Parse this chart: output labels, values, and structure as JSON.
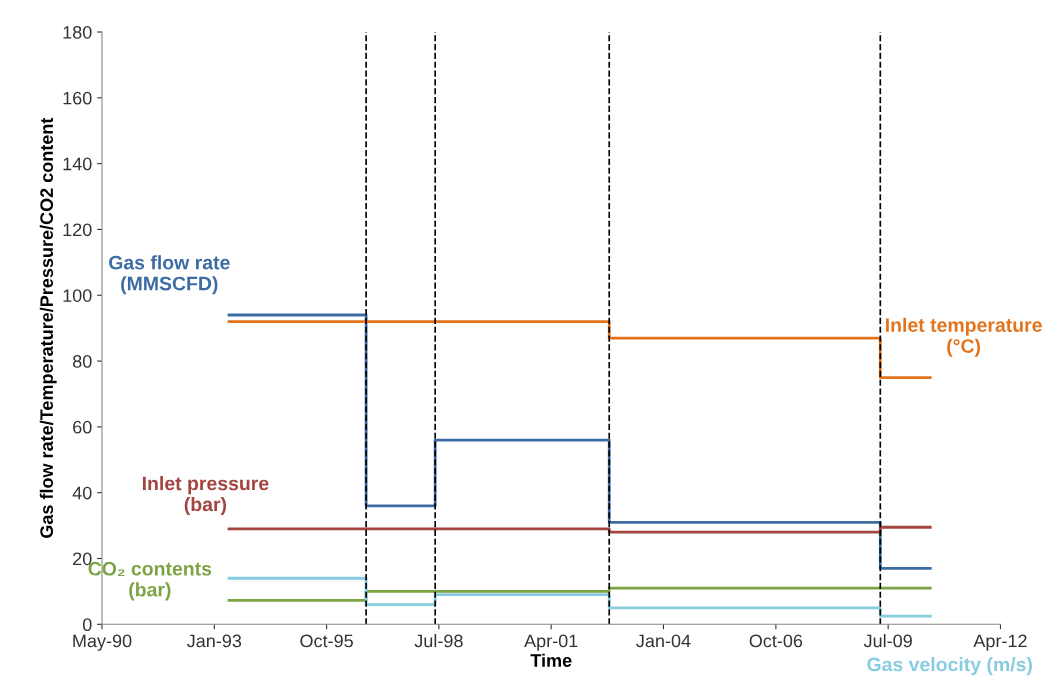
{
  "chart_data": {
    "type": "step",
    "xlabel": "Time",
    "ylabel": "Gas flow rate/Temperature/Pressure/CO2 content",
    "xlim": [
      "1990-05-07",
      "2012-04-02"
    ],
    "xticks": [
      {
        "value": "1990-05-07",
        "label": "May-90"
      },
      {
        "value": "1993-01-31",
        "label": "Jan-93"
      },
      {
        "value": "1995-10-28",
        "label": "Oct-95"
      },
      {
        "value": "1998-07-24",
        "label": "Jul-98"
      },
      {
        "value": "2001-04-19",
        "label": "Apr-01"
      },
      {
        "value": "2004-01-14",
        "label": "Jan-04"
      },
      {
        "value": "2006-10-11",
        "label": "Oct-06"
      },
      {
        "value": "2009-07-07",
        "label": "Jul-09"
      },
      {
        "value": "2012-04-02",
        "label": "Apr-12"
      }
    ],
    "ylim": [
      0,
      180
    ],
    "yticks": [
      0,
      20,
      40,
      60,
      80,
      100,
      120,
      140,
      160,
      180
    ],
    "x": [
      "1993-06-11",
      "1996-10-14",
      "1998-06-21",
      "2002-09-18",
      "2009-04-28",
      "2010-07-17"
    ],
    "series": [
      {
        "name": "Gas flow rate\n(MMSCFD)",
        "color": "#3c6ca4",
        "values": [
          94,
          36,
          56,
          31,
          17,
          17
        ]
      },
      {
        "name": "Inlet temperature\n(°C)",
        "color": "#e4741c",
        "values": [
          92,
          92,
          92,
          87,
          75,
          75
        ]
      },
      {
        "name": "Inlet pressure\n(bar)",
        "color": "#a44440",
        "values": [
          29,
          29,
          29,
          28,
          29.5,
          29.5
        ]
      },
      {
        "name": "CO₂ contents\n(bar)",
        "color": "#7ca444",
        "values": [
          7.3,
          10,
          10,
          11,
          11,
          11
        ]
      },
      {
        "name": "Gas velocity (m/s)",
        "color": "#88cce0",
        "values": [
          14,
          6,
          9,
          5,
          2.5,
          2.5
        ]
      }
    ],
    "ref_lines": [
      {
        "axis": "x",
        "value": "1996-10-14",
        "color": "#000000",
        "line_style": "dashed"
      },
      {
        "axis": "x",
        "value": "1998-06-21",
        "color": "#000000",
        "line_style": "dashed"
      },
      {
        "axis": "x",
        "value": "2002-09-18",
        "color": "#000000",
        "line_style": "dashed"
      },
      {
        "axis": "x",
        "value": "2009-04-28",
        "color": "#000000",
        "line_style": "dashed"
      }
    ],
    "grid": false,
    "legend": false,
    "marker": "none",
    "line_style": "solid"
  }
}
